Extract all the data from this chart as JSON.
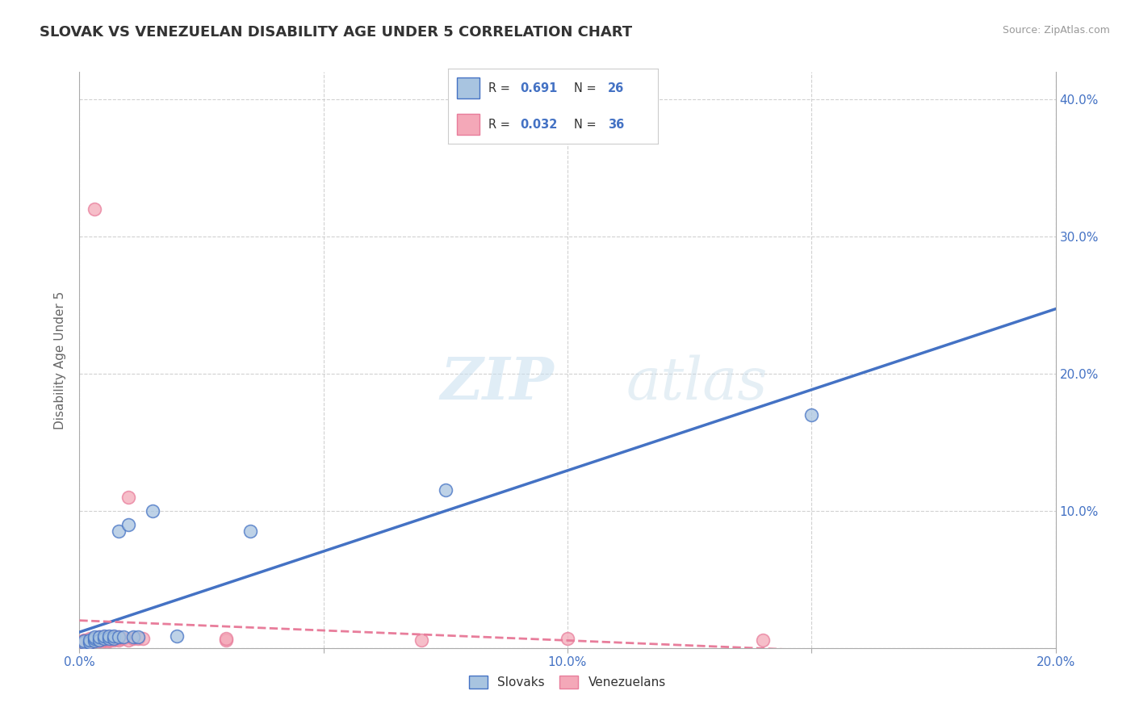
{
  "title": "SLOVAK VS VENEZUELAN DISABILITY AGE UNDER 5 CORRELATION CHART",
  "source": "Source: ZipAtlas.com",
  "ylabel": "Disability Age Under 5",
  "xlim": [
    0.0,
    0.2
  ],
  "ylim": [
    0.0,
    0.42
  ],
  "xticks": [
    0.0,
    0.05,
    0.1,
    0.15,
    0.2
  ],
  "yticks_right": [
    0.0,
    0.1,
    0.2,
    0.3,
    0.4
  ],
  "ytick_right_labels": [
    "",
    "10.0%",
    "20.0%",
    "30.0%",
    "40.0%"
  ],
  "xtick_labels": [
    "0.0%",
    "",
    "10.0%",
    "",
    "20.0%"
  ],
  "background_color": "#ffffff",
  "grid_color": "#cccccc",
  "slovak_color": "#a8c4e0",
  "venezuelan_color": "#f4a8b8",
  "slovak_line_color": "#4472c4",
  "venezuelan_line_color": "#e87d9b",
  "slovak_R": 0.691,
  "slovak_N": 26,
  "venezuelan_R": 0.032,
  "venezuelan_N": 36,
  "slovak_x": [
    0.001,
    0.001,
    0.002,
    0.002,
    0.003,
    0.003,
    0.003,
    0.004,
    0.004,
    0.005,
    0.005,
    0.006,
    0.006,
    0.007,
    0.007,
    0.008,
    0.008,
    0.009,
    0.01,
    0.011,
    0.012,
    0.015,
    0.02,
    0.035,
    0.075,
    0.15
  ],
  "slovak_y": [
    0.004,
    0.005,
    0.004,
    0.006,
    0.005,
    0.007,
    0.008,
    0.006,
    0.008,
    0.007,
    0.009,
    0.007,
    0.009,
    0.007,
    0.009,
    0.008,
    0.085,
    0.008,
    0.09,
    0.008,
    0.008,
    0.1,
    0.009,
    0.085,
    0.115,
    0.17
  ],
  "venezuelan_x": [
    0.001,
    0.001,
    0.001,
    0.002,
    0.002,
    0.002,
    0.003,
    0.003,
    0.003,
    0.003,
    0.004,
    0.004,
    0.004,
    0.005,
    0.005,
    0.005,
    0.006,
    0.006,
    0.006,
    0.007,
    0.007,
    0.007,
    0.008,
    0.008,
    0.008,
    0.009,
    0.01,
    0.01,
    0.011,
    0.012,
    0.013,
    0.03,
    0.03,
    0.07,
    0.1,
    0.14
  ],
  "venezuelan_y": [
    0.004,
    0.005,
    0.006,
    0.004,
    0.005,
    0.007,
    0.005,
    0.006,
    0.007,
    0.32,
    0.005,
    0.006,
    0.008,
    0.005,
    0.006,
    0.008,
    0.005,
    0.006,
    0.008,
    0.006,
    0.007,
    0.008,
    0.006,
    0.007,
    0.008,
    0.007,
    0.006,
    0.11,
    0.007,
    0.007,
    0.007,
    0.006,
    0.007,
    0.006,
    0.007,
    0.006
  ]
}
